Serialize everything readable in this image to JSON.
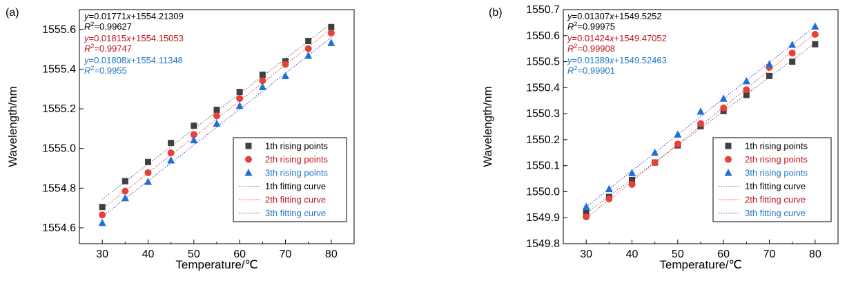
{
  "chart_data": [
    {
      "type": "scatter",
      "panel_label": "(a)",
      "title": "",
      "xlabel": "Temperature/℃",
      "ylabel": "Wavelength/nm",
      "xlim": [
        25,
        85
      ],
      "ylim": [
        1554.52,
        1555.7
      ],
      "xticks": [
        30,
        40,
        50,
        60,
        70,
        80
      ],
      "yticks": [
        1554.6,
        1554.8,
        1555.0,
        1555.2,
        1555.4,
        1555.6
      ],
      "ytick_labels": [
        "1554.6",
        "1554.8",
        "1555.0",
        "1555.2",
        "1555.4",
        "1555.6"
      ],
      "legend_position": "bottom-right",
      "x": [
        30,
        35,
        40,
        45,
        50,
        55,
        60,
        65,
        70,
        75,
        80
      ],
      "series": [
        {
          "name": "1th rising points",
          "marker": "square",
          "color": "#404040",
          "values": [
            1554.705,
            1554.835,
            1554.932,
            1555.028,
            1555.115,
            1555.195,
            1555.285,
            1555.372,
            1555.44,
            1555.542,
            1555.612
          ]
        },
        {
          "name": "2th rising points",
          "marker": "circle",
          "color": "#e8403a",
          "values": [
            1554.665,
            1554.785,
            1554.878,
            1554.978,
            1555.07,
            1555.165,
            1555.252,
            1555.342,
            1555.424,
            1555.503,
            1555.582
          ]
        },
        {
          "name": "3th rising points",
          "marker": "triangle",
          "color": "#1f6fd4",
          "values": [
            1554.625,
            1554.75,
            1554.832,
            1554.94,
            1555.042,
            1555.125,
            1555.215,
            1555.31,
            1555.365,
            1555.468,
            1555.532
          ]
        }
      ],
      "fits": [
        {
          "name": "1th fitting curve",
          "color": "#606060",
          "slope": 0.01771,
          "intercept": 1554.21309
        },
        {
          "name": "2th fitting curve",
          "color": "#e8403a",
          "slope": 0.01815,
          "intercept": 1554.15053
        },
        {
          "name": "3th fitting curve",
          "color": "#3a3ae0",
          "slope": 0.01808,
          "intercept": 1554.11348
        }
      ],
      "equations": [
        {
          "eq": "y=0.01771x+1554.21309",
          "r2": "R2=0.99627",
          "color": "#000000"
        },
        {
          "eq": "y=0.01815x+1554.15053",
          "r2": "R2=0.99747",
          "color": "#c0141c"
        },
        {
          "eq": "y=0.01808x+1554.11348",
          "r2": "R2=0.9955",
          "color": "#1f77c4"
        }
      ]
    },
    {
      "type": "scatter",
      "panel_label": "(b)",
      "title": "",
      "xlabel": "Temperature/℃",
      "ylabel": "Wavelength/nm",
      "xlim": [
        25,
        85
      ],
      "ylim": [
        1549.8,
        1550.7
      ],
      "xticks": [
        30,
        40,
        50,
        60,
        70,
        80
      ],
      "yticks": [
        1549.8,
        1549.9,
        1550.0,
        1550.1,
        1550.2,
        1550.3,
        1550.4,
        1550.5,
        1550.6,
        1550.7
      ],
      "ytick_labels": [
        "1549.8",
        "1549.9",
        "1550.0",
        "1550.1",
        "1550.2",
        "1550.3",
        "1550.4",
        "1550.5",
        "1550.6",
        "1550.7"
      ],
      "legend_position": "bottom-right",
      "x": [
        30,
        35,
        40,
        45,
        50,
        55,
        60,
        65,
        70,
        75,
        80
      ],
      "series": [
        {
          "name": "1th rising points",
          "marker": "square",
          "color": "#404040",
          "values": [
            1549.918,
            1549.98,
            1550.045,
            1550.112,
            1550.178,
            1550.252,
            1550.31,
            1550.372,
            1550.445,
            1550.5,
            1550.567
          ]
        },
        {
          "name": "2th rising points",
          "marker": "circle",
          "color": "#e8403a",
          "values": [
            1549.903,
            1549.972,
            1550.028,
            1550.112,
            1550.183,
            1550.262,
            1550.322,
            1550.392,
            1550.478,
            1550.533,
            1550.605
          ]
        },
        {
          "name": "3th rising points",
          "marker": "triangle",
          "color": "#1f6fd4",
          "values": [
            1549.942,
            1550.01,
            1550.072,
            1550.15,
            1550.22,
            1550.308,
            1550.358,
            1550.425,
            1550.49,
            1550.565,
            1550.635
          ]
        }
      ],
      "fits": [
        {
          "name": "1th fitting curve",
          "color": "#606060",
          "slope": 0.01307,
          "intercept": 1549.5252
        },
        {
          "name": "2th fitting curve",
          "color": "#e8403a",
          "slope": 0.01424,
          "intercept": 1549.47052
        },
        {
          "name": "3th fitting curve",
          "color": "#3a3ae0",
          "slope": 0.01389,
          "intercept": 1549.52463
        }
      ],
      "equations": [
        {
          "eq": "y=0.01307x+1549.5252",
          "r2": "R2=0.99975",
          "color": "#000000"
        },
        {
          "eq": "y=0.01424x+1549.47052",
          "r2": "R2=0.99908",
          "color": "#c0141c"
        },
        {
          "eq": "y=0.01389x+1549.52463",
          "r2": "R2=0.99901",
          "color": "#1f77c4"
        }
      ]
    }
  ],
  "legend_text_colors": [
    "#000000",
    "#c0141c",
    "#1f77c4"
  ]
}
